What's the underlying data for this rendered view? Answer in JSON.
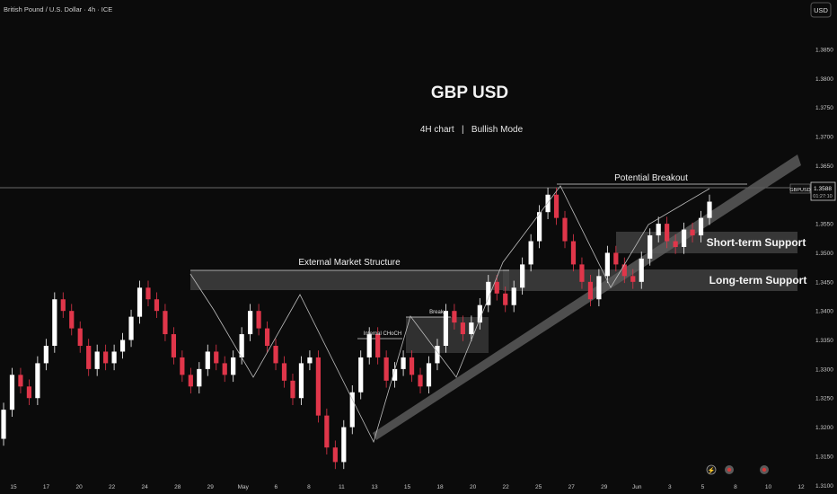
{
  "header": {
    "instrument": "British Pound / U.S. Dollar · 4h · ICE",
    "currency_button": "USD"
  },
  "title": "GBP USD",
  "subtitle": "4H chart   |   Bullish Mode",
  "price_tag": {
    "symbol": "GBPUSD",
    "price": "1.3588",
    "countdown": "01:27:10"
  },
  "annotations": {
    "potential_breakout": "Potential Breakout",
    "external_structure": "External Market Structure",
    "short_term_support": "Short-term Support",
    "long_term_support": "Long-term Support",
    "internal_choch": "Internal CHoCH",
    "break": "Break"
  },
  "colors": {
    "background": "#0b0b0b",
    "bull": "#ffffff",
    "bear": "#e0364a",
    "zone": "#4a4a4a",
    "text": "#e8e8e8",
    "axis_text": "#c9c9c9"
  },
  "chart_data": {
    "type": "candlestick",
    "timeframe": "4h",
    "ylim": [
      1.3085,
      1.3935
    ],
    "y_ticks": [
      1.31,
      1.315,
      1.32,
      1.325,
      1.33,
      1.335,
      1.34,
      1.345,
      1.35,
      1.355,
      1.36,
      1.365,
      1.37,
      1.375,
      1.38,
      1.385
    ],
    "x_ticks": [
      "15",
      "17",
      "20",
      "22",
      "24",
      "28",
      "29",
      "May",
      "6",
      "8",
      "11",
      "13",
      "15",
      "18",
      "20",
      "22",
      "25",
      "27",
      "29",
      "Jun",
      "3",
      "5",
      "8",
      "10",
      "12"
    ],
    "current_price": 1.3588,
    "series": [
      {
        "name": "GBPUSD",
        "points": [
          [
            1.318,
            1.323
          ],
          [
            1.323,
            1.329
          ],
          [
            1.329,
            1.327
          ],
          [
            1.327,
            1.325
          ],
          [
            1.325,
            1.331
          ],
          [
            1.331,
            1.334
          ],
          [
            1.334,
            1.342
          ],
          [
            1.342,
            1.34
          ],
          [
            1.34,
            1.337
          ],
          [
            1.337,
            1.334
          ],
          [
            1.334,
            1.33
          ],
          [
            1.33,
            1.333
          ],
          [
            1.333,
            1.331
          ],
          [
            1.331,
            1.333
          ],
          [
            1.333,
            1.335
          ],
          [
            1.335,
            1.339
          ],
          [
            1.339,
            1.344
          ],
          [
            1.344,
            1.342
          ],
          [
            1.342,
            1.34
          ],
          [
            1.34,
            1.336
          ],
          [
            1.336,
            1.332
          ],
          [
            1.332,
            1.329
          ],
          [
            1.329,
            1.327
          ],
          [
            1.327,
            1.33
          ],
          [
            1.33,
            1.333
          ],
          [
            1.333,
            1.331
          ],
          [
            1.331,
            1.329
          ],
          [
            1.329,
            1.332
          ],
          [
            1.332,
            1.336
          ],
          [
            1.336,
            1.34
          ],
          [
            1.34,
            1.337
          ],
          [
            1.337,
            1.334
          ],
          [
            1.334,
            1.331
          ],
          [
            1.331,
            1.328
          ],
          [
            1.328,
            1.325
          ],
          [
            1.325,
            1.331
          ],
          [
            1.331,
            1.332
          ],
          [
            1.332,
            1.322
          ],
          [
            1.322,
            1.3165
          ],
          [
            1.3165,
            1.314
          ],
          [
            1.314,
            1.32
          ],
          [
            1.32,
            1.326
          ],
          [
            1.326,
            1.332
          ],
          [
            1.332,
            1.336
          ],
          [
            1.336,
            1.332
          ],
          [
            1.332,
            1.328
          ],
          [
            1.328,
            1.33
          ],
          [
            1.33,
            1.332
          ],
          [
            1.332,
            1.329
          ],
          [
            1.329,
            1.327
          ],
          [
            1.327,
            1.331
          ],
          [
            1.331,
            1.334
          ],
          [
            1.334,
            1.34
          ],
          [
            1.34,
            1.338
          ],
          [
            1.338,
            1.336
          ],
          [
            1.336,
            1.338
          ],
          [
            1.338,
            1.341
          ],
          [
            1.341,
            1.345
          ],
          [
            1.345,
            1.343
          ],
          [
            1.343,
            1.341
          ],
          [
            1.341,
            1.344
          ],
          [
            1.344,
            1.348
          ],
          [
            1.348,
            1.352
          ],
          [
            1.352,
            1.357
          ],
          [
            1.357,
            1.36
          ],
          [
            1.36,
            1.356
          ],
          [
            1.356,
            1.352
          ],
          [
            1.352,
            1.348
          ],
          [
            1.348,
            1.345
          ],
          [
            1.345,
            1.342
          ],
          [
            1.342,
            1.346
          ],
          [
            1.346,
            1.35
          ],
          [
            1.35,
            1.348
          ],
          [
            1.348,
            1.346
          ],
          [
            1.346,
            1.345
          ],
          [
            1.345,
            1.349
          ],
          [
            1.349,
            1.353
          ],
          [
            1.353,
            1.355
          ],
          [
            1.355,
            1.352
          ],
          [
            1.352,
            1.351
          ],
          [
            1.351,
            1.354
          ],
          [
            1.354,
            1.353
          ],
          [
            1.353,
            1.356
          ],
          [
            1.356,
            1.3588
          ]
        ]
      }
    ],
    "zones": [
      {
        "label": "External Market Structure",
        "y": [
          1.3405,
          1.344
        ]
      },
      {
        "label": "Long-term Support",
        "y": [
          1.3405,
          1.3445
        ]
      },
      {
        "label": "Short-term Support",
        "y": [
          1.3475,
          1.351
        ]
      },
      {
        "label": "Break",
        "y": [
          1.3295,
          1.3365
        ]
      }
    ],
    "levels": [
      {
        "label": "Potential Breakout",
        "y": 1.3598
      }
    ],
    "grid": false,
    "legend": "none"
  }
}
